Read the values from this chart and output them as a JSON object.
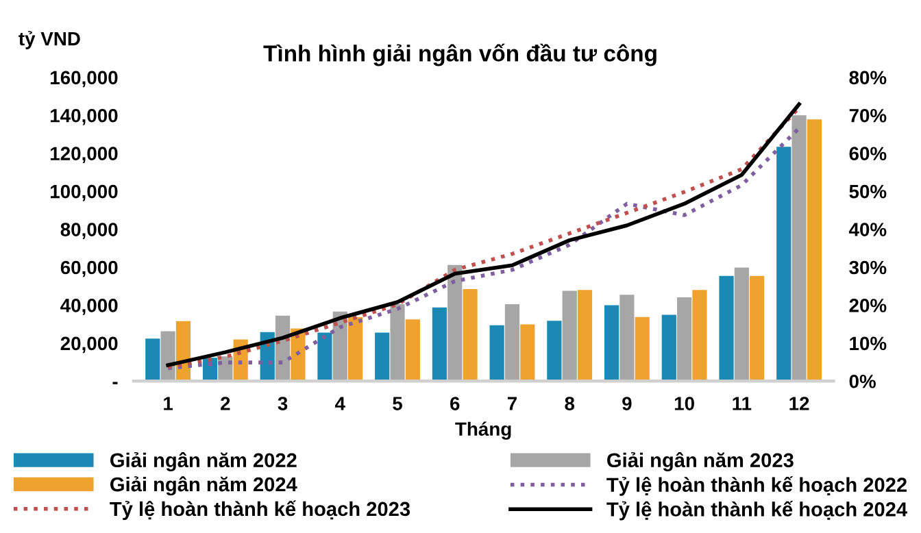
{
  "chart_data": {
    "type": "bar",
    "title": "Tình hình giải ngân vốn đầu tư công",
    "xlabel": "Tháng",
    "ylabel": "tỷ VND",
    "categories": [
      "1",
      "2",
      "3",
      "4",
      "5",
      "6",
      "7",
      "8",
      "9",
      "10",
      "11",
      "12"
    ],
    "series": [
      {
        "name": "Giải ngân năm 2022",
        "color": "#1a8ab4",
        "values": [
          22400,
          12300,
          25800,
          25500,
          25500,
          38800,
          29400,
          31800,
          40000,
          34900,
          55400,
          123400
        ]
      },
      {
        "name": "Giải ngân năm 2023",
        "color": "#a6a6a6",
        "values": [
          26300,
          13000,
          34500,
          36600,
          40500,
          61200,
          40500,
          47500,
          45500,
          44100,
          59800,
          140000
        ]
      },
      {
        "name": "Giải ngân năm 2024",
        "color": "#f0a22e",
        "values": [
          31600,
          21900,
          27700,
          33700,
          32500,
          48400,
          29900,
          48000,
          33700,
          48000,
          55400,
          137800
        ]
      },
      {
        "name": "Tỷ lệ hoàn thành kế hoạch 2022",
        "type": "line",
        "axis": "y2",
        "line_style": "dotted",
        "color": "#7f5fa0",
        "values": [
          3.4,
          4.9,
          4.9,
          14.2,
          19,
          26.3,
          29.3,
          35.9,
          46.7,
          43.7,
          51.6,
          66.6
        ]
      },
      {
        "name": "Tỷ lệ hoàn thành kế hoạch 2023",
        "type": "line",
        "axis": "y2",
        "line_style": "dotted",
        "color": "#c0504d",
        "values": [
          3.7,
          6.4,
          10.6,
          15.4,
          20.2,
          29.3,
          33.5,
          38.9,
          44.3,
          49.8,
          55.8,
          72
        ]
      },
      {
        "name": "Tỷ lệ hoàn thành kế hoạch 2024",
        "type": "line",
        "axis": "y2",
        "line_style": "solid",
        "color": "#000000",
        "values": [
          4.2,
          7.6,
          11.4,
          16.6,
          20.8,
          28.3,
          30.5,
          37.1,
          41,
          46.7,
          54.3,
          72.9
        ]
      }
    ],
    "ylim": [
      0,
      160000
    ],
    "yticks": [
      {
        "value": 0,
        "label": "-"
      },
      {
        "value": 20000,
        "label": "20,000"
      },
      {
        "value": 40000,
        "label": "40,000"
      },
      {
        "value": 60000,
        "label": "60,000"
      },
      {
        "value": 80000,
        "label": "80,000"
      },
      {
        "value": 100000,
        "label": "100,000"
      },
      {
        "value": 120000,
        "label": "120,000"
      },
      {
        "value": 140000,
        "label": "140,000"
      },
      {
        "value": 160000,
        "label": "160,000"
      }
    ],
    "y2lim": [
      0,
      80
    ],
    "y2ticks": [
      {
        "value": 0,
        "label": "0%"
      },
      {
        "value": 10,
        "label": "10%"
      },
      {
        "value": 20,
        "label": "20%"
      },
      {
        "value": 30,
        "label": "30%"
      },
      {
        "value": 40,
        "label": "40%"
      },
      {
        "value": 50,
        "label": "50%"
      },
      {
        "value": 60,
        "label": "60%"
      },
      {
        "value": 70,
        "label": "70%"
      },
      {
        "value": 80,
        "label": "80%"
      }
    ],
    "grid": false,
    "legend": "bottom"
  }
}
